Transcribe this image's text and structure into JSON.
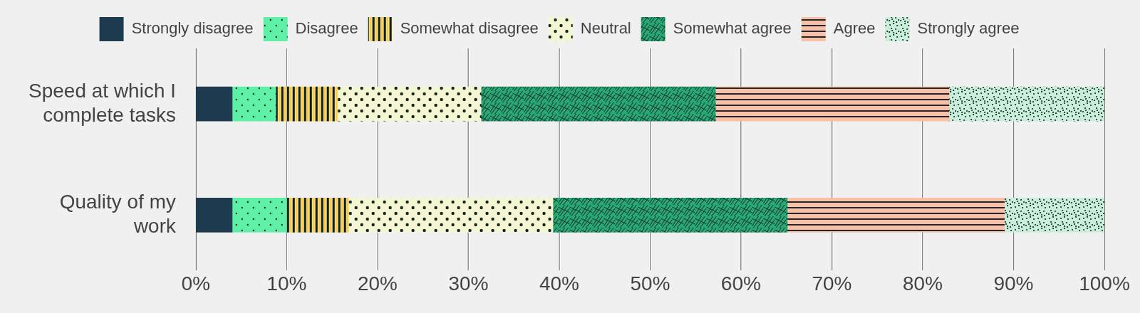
{
  "chart_data": {
    "type": "bar",
    "orientation": "horizontal",
    "stacked": true,
    "grid": true,
    "legend": "top",
    "categories": [
      "Speed at which I complete tasks",
      "Quality of my work"
    ],
    "series": [
      {
        "name": "Strongly disagree",
        "color": "#1d3a4f",
        "values": [
          4,
          4
        ]
      },
      {
        "name": "Disagree",
        "color": "#5ef0a6",
        "values": [
          4.8,
          6
        ]
      },
      {
        "name": "Somewhat disagree",
        "color": "#f7cf62",
        "values": [
          6.8,
          6.8
        ]
      },
      {
        "name": "Neutral",
        "color": "#f4f6d2",
        "values": [
          15.8,
          22.5
        ]
      },
      {
        "name": "Somewhat agree",
        "color": "#28a873",
        "values": [
          25.8,
          25.8
        ]
      },
      {
        "name": "Agree",
        "color": "#fbbfa8",
        "values": [
          25.7,
          23.9
        ]
      },
      {
        "name": "Strongly agree",
        "color": "#c9efdb",
        "values": [
          17.1,
          11
        ]
      }
    ],
    "xlim": [
      0,
      100
    ],
    "xticks": [
      {
        "value": 0,
        "label": "0%"
      },
      {
        "value": 10,
        "label": "10%"
      },
      {
        "value": 20,
        "label": "20%"
      },
      {
        "value": 30,
        "label": "30%"
      },
      {
        "value": 40,
        "label": "40%"
      },
      {
        "value": 50,
        "label": "50%"
      },
      {
        "value": 60,
        "label": "60%"
      },
      {
        "value": 70,
        "label": "70%"
      },
      {
        "value": 80,
        "label": "80%"
      },
      {
        "value": 90,
        "label": "90%"
      },
      {
        "value": 100,
        "label": "100%"
      }
    ]
  }
}
